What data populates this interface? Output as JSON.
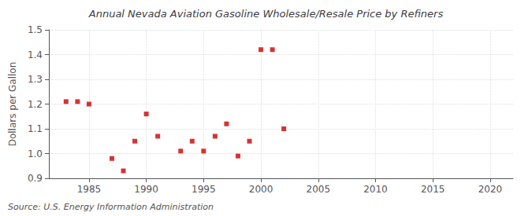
{
  "chart_data": {
    "type": "scatter",
    "title": "Annual Nevada Aviation Gasoline Wholesale/Resale Price by Refiners",
    "ylabel": "Dollars per Gallon",
    "annotation": "Source: U.S. Energy Information Administration",
    "color": "#cc0000",
    "marker": "square",
    "grid": true,
    "x": [
      1983,
      1984,
      1985,
      1987,
      1988,
      1989,
      1990,
      1991,
      1993,
      1994,
      1995,
      1996,
      1997,
      1998,
      1999,
      2000,
      2001,
      2002
    ],
    "values": [
      1.21,
      1.21,
      1.2,
      0.98,
      0.93,
      1.05,
      1.16,
      1.07,
      1.01,
      1.05,
      1.01,
      1.07,
      1.12,
      0.99,
      1.05,
      1.42,
      1.42,
      1.1
    ],
    "xlim": [
      1981.5,
      2022
    ],
    "ylim": [
      0.9,
      1.5
    ],
    "xticks": [
      1985,
      1990,
      1995,
      2000,
      2005,
      2010,
      2015,
      2020
    ],
    "yticks": [
      0.9,
      {
        "value": 1.0,
        "label": "1.0"
      },
      1.1,
      1.2,
      1.3,
      1.4,
      1.5
    ]
  }
}
